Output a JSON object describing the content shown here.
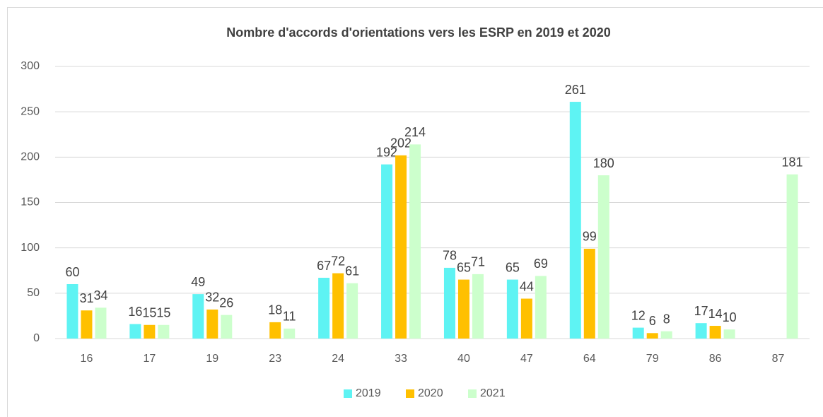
{
  "chart_data": {
    "type": "bar",
    "title": "Nombre d'accords d'orientations vers les ESRP en 2019 et 2020",
    "categories": [
      "16",
      "17",
      "19",
      "23",
      "24",
      "33",
      "40",
      "47",
      "64",
      "79",
      "86",
      "87"
    ],
    "series": [
      {
        "name": "2019",
        "color": "#5ef3f3",
        "values": [
          60,
          16,
          49,
          null,
          67,
          192,
          78,
          65,
          261,
          12,
          17,
          null
        ]
      },
      {
        "name": "2020",
        "color": "#ffc000",
        "values": [
          31,
          15,
          32,
          18,
          72,
          202,
          65,
          44,
          99,
          6,
          14,
          null
        ]
      },
      {
        "name": "2021",
        "color": "#ccffcc",
        "values": [
          34,
          15,
          26,
          11,
          61,
          214,
          71,
          69,
          180,
          8,
          10,
          181
        ]
      }
    ],
    "ylim": [
      0,
      300
    ],
    "yticks": [
      0,
      50,
      100,
      150,
      200,
      250,
      300
    ],
    "grid": true,
    "legend": "bottom"
  }
}
